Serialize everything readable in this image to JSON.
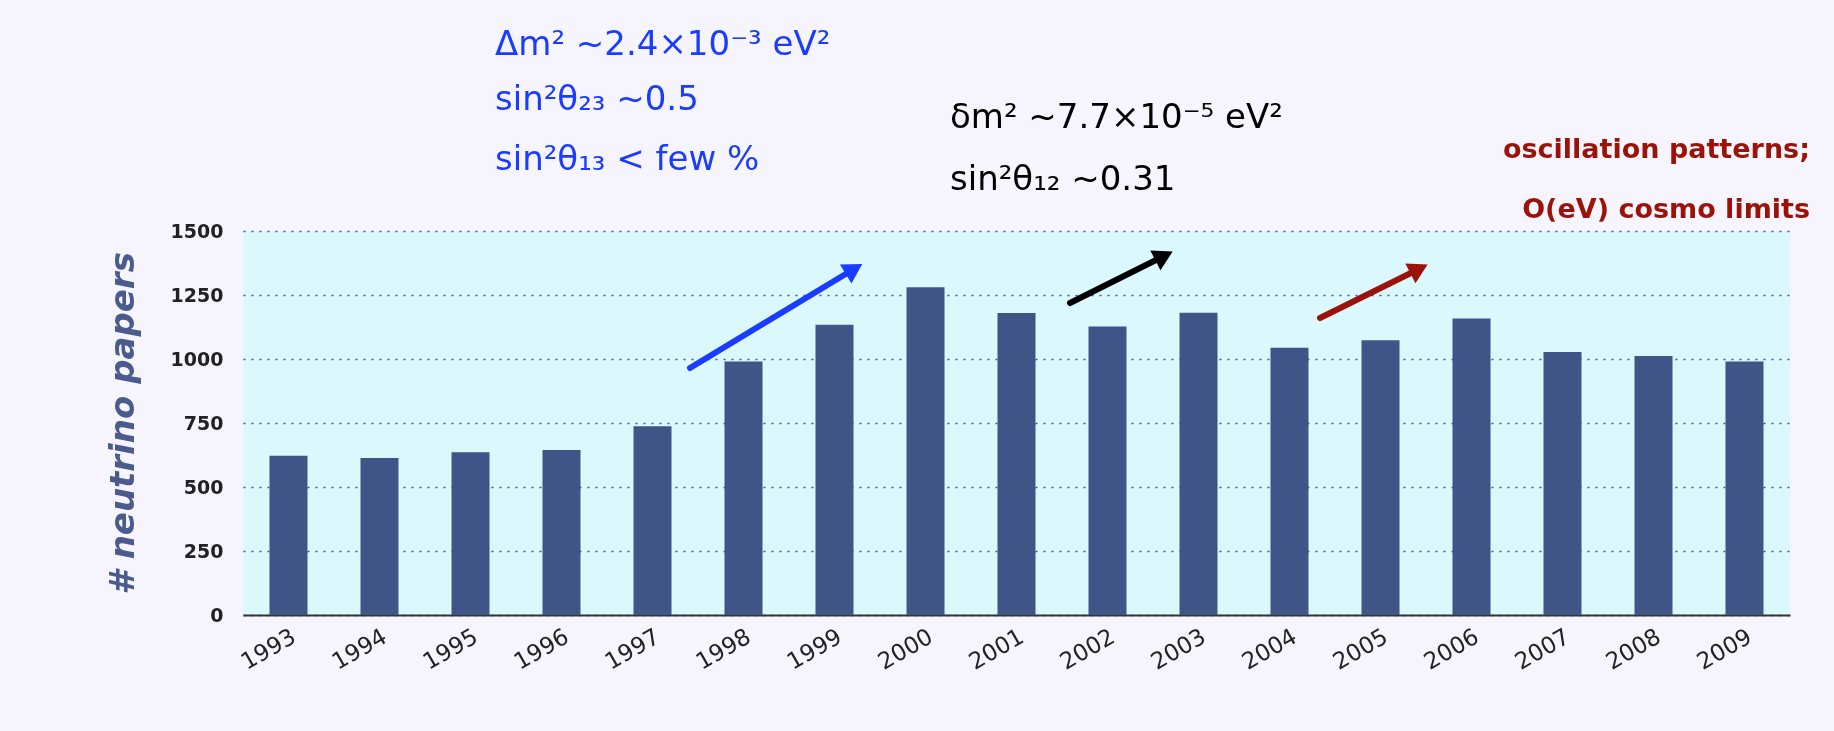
{
  "chart_data": {
    "type": "bar",
    "ylabel": "# neutrino papers",
    "categories": [
      "1993",
      "1994",
      "1995",
      "1996",
      "1997",
      "1998",
      "1999",
      "2000",
      "2001",
      "2002",
      "2003",
      "2004",
      "2005",
      "2006",
      "2007",
      "2008",
      "2009"
    ],
    "values": [
      622,
      613,
      636,
      645,
      737,
      990,
      1134,
      1280,
      1180,
      1127,
      1181,
      1044,
      1073,
      1158,
      1027,
      1012,
      990
    ],
    "color": "#3f5588",
    "ylim": [
      0,
      1500
    ],
    "yticks": [
      0,
      250,
      500,
      750,
      1000,
      1250,
      1500
    ],
    "grid": "y",
    "annotations": [
      "Δm² ~2.4×10⁻³ eV²",
      "sin²θ₂₃  ~0.5",
      "sin²θ₁₃ < few %",
      "δm²  ~7.7×10⁻⁵ eV²",
      "sin²θ₁₂  ~0.31",
      "oscillation patterns;",
      "O(eV) cosmo limits"
    ]
  }
}
